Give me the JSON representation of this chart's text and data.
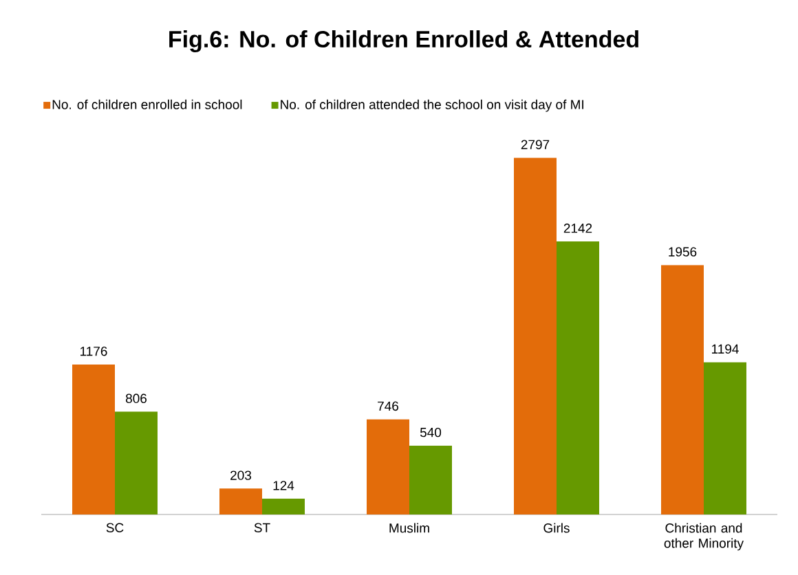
{
  "chart_data": {
    "type": "bar",
    "title": "Fig.6: No. of Children Enrolled & Attended",
    "categories": [
      "SC",
      "ST",
      "Muslim",
      "Girls",
      "Christian and other Minority"
    ],
    "series": [
      {
        "name": "No. of children enrolled in school",
        "color": "#e36c0a",
        "values": [
          1176,
          203,
          746,
          2797,
          1956
        ]
      },
      {
        "name": "No. of children attended the school on visit day of MI",
        "color": "#669900",
        "values": [
          806,
          124,
          540,
          2142,
          1194
        ]
      }
    ],
    "data_labels": true,
    "legend": "top"
  }
}
